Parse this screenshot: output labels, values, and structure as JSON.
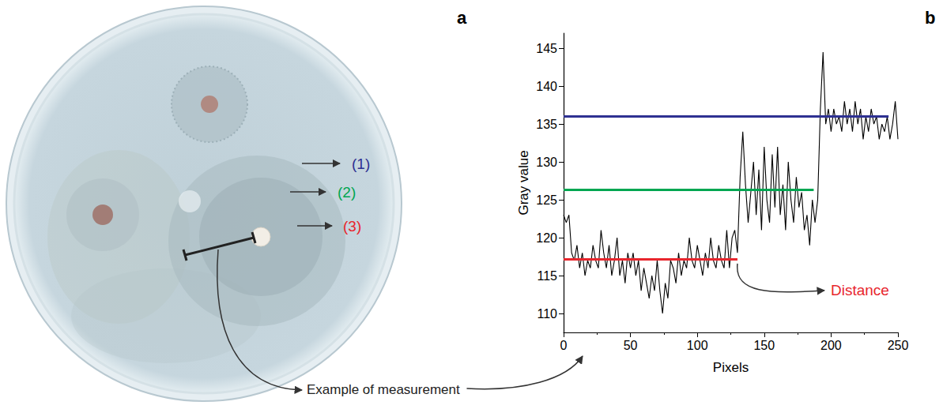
{
  "panels": [
    {
      "letter": "a",
      "zone_labels": [
        {
          "text": "(1)",
          "color": "#2e3192"
        },
        {
          "text": "(2)",
          "color": "#00a651"
        },
        {
          "text": "(3)",
          "color": "#e8262d"
        }
      ],
      "caption": "Example of measurement"
    },
    {
      "letter": "b"
    }
  ],
  "chart_data": {
    "type": "line",
    "x_label": "Pixels",
    "y_label": "Gray value",
    "color": "#000000",
    "x": [
      0,
      2,
      4,
      6,
      8,
      10,
      12,
      14,
      16,
      18,
      20,
      22,
      24,
      26,
      28,
      30,
      32,
      34,
      36,
      38,
      40,
      42,
      44,
      46,
      48,
      50,
      52,
      54,
      56,
      58,
      60,
      62,
      64,
      66,
      68,
      70,
      72,
      74,
      76,
      78,
      80,
      82,
      84,
      86,
      88,
      90,
      92,
      94,
      96,
      98,
      100,
      102,
      104,
      106,
      108,
      110,
      112,
      114,
      116,
      118,
      120,
      122,
      124,
      126,
      128,
      130,
      132,
      134,
      136,
      138,
      140,
      142,
      144,
      146,
      148,
      150,
      152,
      154,
      156,
      158,
      160,
      162,
      164,
      166,
      168,
      170,
      172,
      174,
      176,
      178,
      180,
      182,
      184,
      186,
      188,
      190,
      192,
      194,
      196,
      198,
      200,
      202,
      204,
      206,
      208,
      210,
      212,
      214,
      216,
      218,
      220,
      222,
      224,
      226,
      228,
      230,
      232,
      234,
      236,
      238,
      240,
      242,
      244,
      246,
      248,
      250
    ],
    "values": [
      123,
      122,
      123,
      118,
      117,
      119,
      116,
      118,
      115,
      117,
      116,
      119,
      117,
      116,
      121,
      118,
      116,
      119,
      115,
      117,
      120,
      115,
      117,
      114,
      118,
      116,
      118,
      115,
      117,
      113,
      116,
      114,
      112,
      115,
      113,
      117,
      113,
      110,
      114,
      112,
      117,
      116,
      114,
      118,
      115,
      117,
      116,
      120,
      117,
      116,
      119,
      117,
      115,
      118,
      116,
      120,
      117,
      116,
      119,
      117,
      116,
      121,
      116,
      120,
      121,
      118,
      128,
      134,
      127,
      122,
      126,
      130,
      123,
      129,
      121,
      132,
      125,
      122,
      131,
      124,
      132,
      123,
      127,
      121,
      130,
      125,
      122,
      128,
      124,
      126,
      121,
      123,
      119,
      125,
      122,
      125,
      137,
      144.5,
      135,
      137,
      134,
      137,
      135,
      136,
      134,
      138,
      135,
      137,
      134,
      138,
      135,
      137,
      133,
      136,
      134,
      137,
      135,
      136,
      133,
      135,
      134,
      136,
      133,
      135,
      138,
      133
    ],
    "xlim": [
      0,
      250
    ],
    "xticks": [
      0,
      50,
      100,
      150,
      200,
      250
    ],
    "ylim": [
      107.5,
      147
    ],
    "yticks": [
      110,
      115,
      120,
      125,
      130,
      135,
      140,
      145
    ],
    "grid": false,
    "levels": [
      {
        "y": 136,
        "x_start": 243,
        "color": "#2e3192"
      },
      {
        "y": 126.3,
        "x_start": 187,
        "color": "#00a651"
      },
      {
        "y": 117.2,
        "x_start": 130,
        "color": "#e8262d",
        "label": "Distance"
      }
    ]
  }
}
